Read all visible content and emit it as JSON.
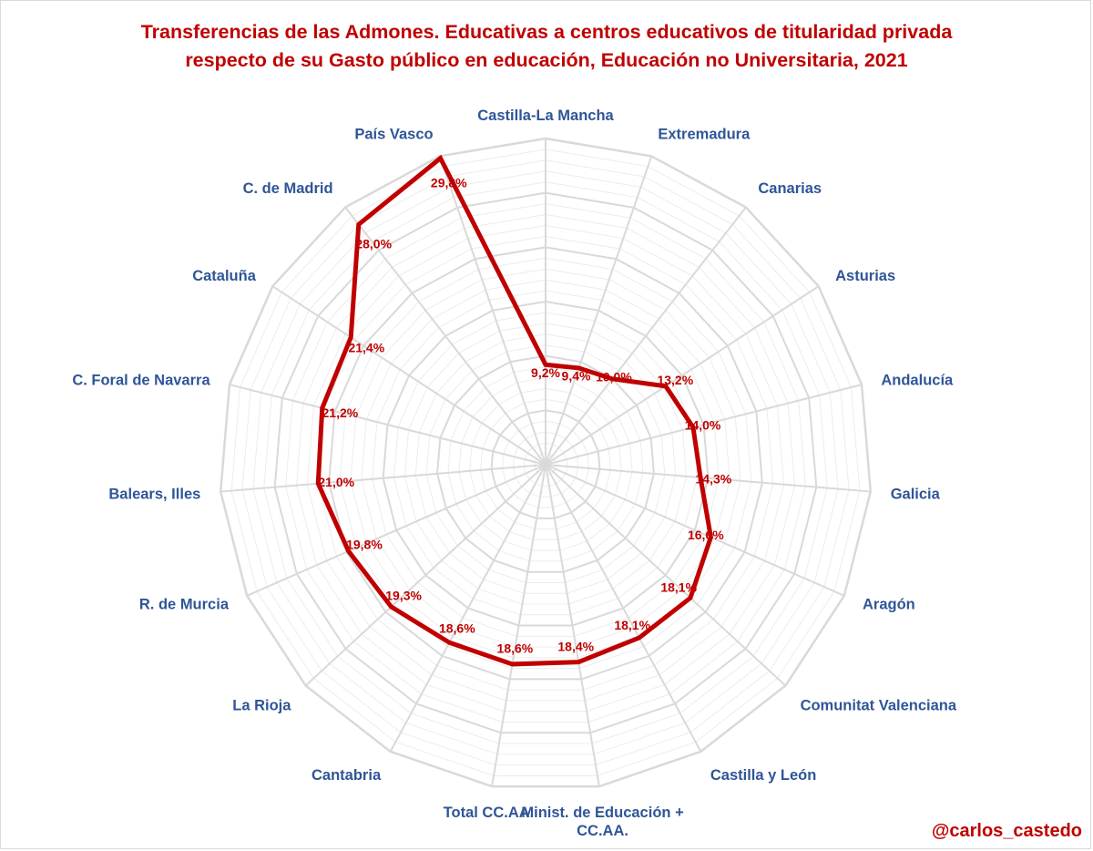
{
  "title": {
    "line1": "Transferencias de las Admones. Educativas a centros educativos de titularidad privada",
    "line2": "respecto de su Gasto público en educación, Educación no Universitaria, 2021"
  },
  "credit": "@carlos_castedo",
  "colors": {
    "title": "#c00000",
    "series": "#c00000",
    "category": "#2f5597",
    "grid": "#d9d9d9"
  },
  "chart_data": {
    "type": "radar",
    "axis_range": [
      0,
      30
    ],
    "grid": true,
    "categories": [
      "Castilla-La Mancha",
      "Extremadura",
      "Canarias",
      "Asturias",
      "Andalucía",
      "Galicia",
      "Aragón",
      "Comunitat Valenciana",
      "Castilla y León",
      "Minist. de Educación + CC.AA.",
      "Total CC.AA.",
      "Cantabria",
      "La Rioja",
      "R. de Murcia",
      "Balears, Illes",
      "C. Foral de Navarra",
      "Cataluña",
      "C. de Madrid",
      "País Vasco"
    ],
    "values": [
      9.2,
      9.4,
      10.0,
      13.2,
      14.0,
      14.3,
      16.6,
      18.1,
      18.1,
      18.4,
      18.6,
      18.6,
      19.3,
      19.8,
      21.0,
      21.2,
      21.4,
      28.0,
      29.8
    ],
    "value_labels": [
      "9,2%",
      "9,4%",
      "10,0%",
      "13,2%",
      "14,0%",
      "14,3%",
      "16,6%",
      "18,1%",
      "18,1%",
      "18,4%",
      "18,6%",
      "18,6%",
      "19,3%",
      "19,8%",
      "21,0%",
      "21,2%",
      "21,4%",
      "28,0%",
      "29,8%"
    ]
  }
}
